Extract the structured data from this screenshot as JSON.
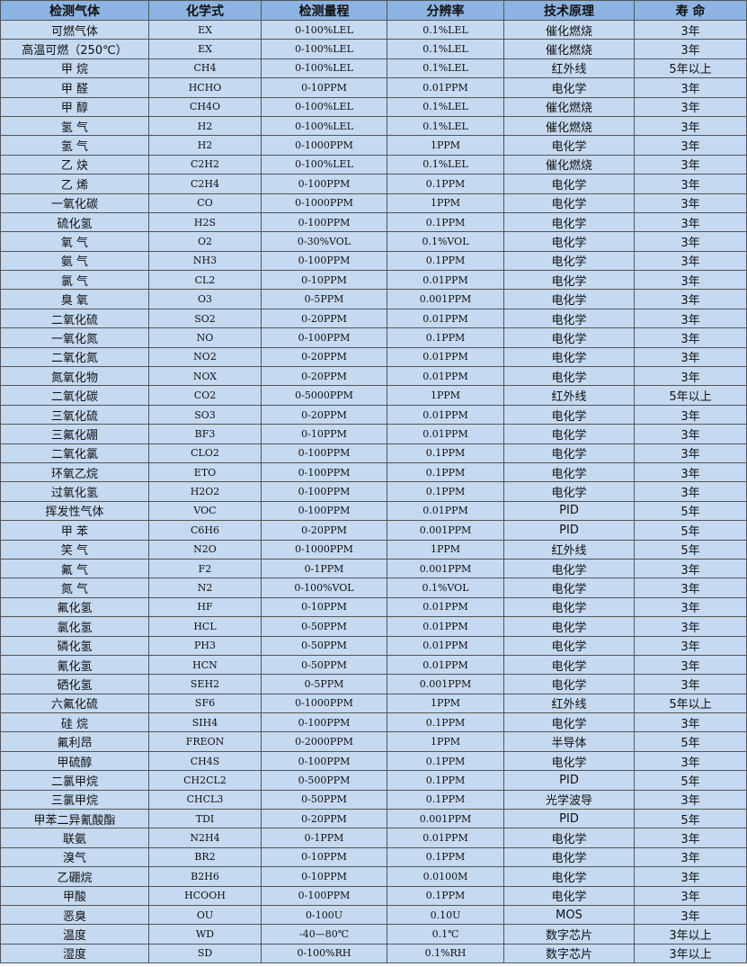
{
  "headers": [
    "检测气体",
    "化学式",
    "检测量程",
    "分辨率",
    "技术原理",
    "寿 命"
  ],
  "rows": [
    [
      "可燃气体",
      "EX",
      "0-100%LEL",
      "0.1%LEL",
      "催化燃烧",
      "3年"
    ],
    [
      "高温可燃（250℃）",
      "EX",
      "0-100%LEL",
      "0.1%LEL",
      "催化燃烧",
      "3年"
    ],
    [
      "甲 烷",
      "CH4",
      "0-100%LEL",
      "0.1%LEL",
      "红外线",
      "5年以上"
    ],
    [
      "甲 醛",
      "HCHO",
      "0-10PPM",
      "0.01PPM",
      "电化学",
      "3年"
    ],
    [
      "甲 醇",
      "CH4O",
      "0-100%LEL",
      "0.1%LEL",
      "催化燃烧",
      "3年"
    ],
    [
      "氢 气",
      "H2",
      "0-100%LEL",
      "0.1%LEL",
      "催化燃烧",
      "3年"
    ],
    [
      "氢 气",
      "H2",
      "0-1000PPM",
      "1PPM",
      "电化学",
      "3年"
    ],
    [
      "乙 炔",
      "C2H2",
      "0-100%LEL",
      "0.1%LEL",
      "催化燃烧",
      "3年"
    ],
    [
      "乙 烯",
      "C2H4",
      "0-100PPM",
      "0.1PPM",
      "电化学",
      "3年"
    ],
    [
      "一氧化碳",
      "CO",
      "0-1000PPM",
      "1PPM",
      "电化学",
      "3年"
    ],
    [
      "硫化氢",
      "H2S",
      "0-100PPM",
      "0.1PPM",
      "电化学",
      "3年"
    ],
    [
      "氧 气",
      "O2",
      "0-30%VOL",
      "0.1%VOL",
      "电化学",
      "3年"
    ],
    [
      "氨 气",
      "NH3",
      "0-100PPM",
      "0.1PPM",
      "电化学",
      "3年"
    ],
    [
      "氯 气",
      "CL2",
      "0-10PPM",
      "0.01PPM",
      "电化学",
      "3年"
    ],
    [
      "臭 氧",
      "O3",
      "0-5PPM",
      "0.001PPM",
      "电化学",
      "3年"
    ],
    [
      "二氧化硫",
      "SO2",
      "0-20PPM",
      "0.01PPM",
      "电化学",
      "3年"
    ],
    [
      "一氧化氮",
      "NO",
      "0-100PPM",
      "0.1PPM",
      "电化学",
      "3年"
    ],
    [
      "二氧化氮",
      "NO2",
      "0-20PPM",
      "0.01PPM",
      "电化学",
      "3年"
    ],
    [
      "氮氧化物",
      "NOX",
      "0-20PPM",
      "0.01PPM",
      "电化学",
      "3年"
    ],
    [
      "二氧化碳",
      "CO2",
      "0-5000PPM",
      "1PPM",
      "红外线",
      "5年以上"
    ],
    [
      "三氧化硫",
      "SO3",
      "0-20PPM",
      "0.01PPM",
      "电化学",
      "3年"
    ],
    [
      "三氟化硼",
      "BF3",
      "0-10PPM",
      "0.01PPM",
      "电化学",
      "3年"
    ],
    [
      "二氧化氯",
      "CLO2",
      "0-100PPM",
      "0.1PPM",
      "电化学",
      "3年"
    ],
    [
      "环氧乙烷",
      "ETO",
      "0-100PPM",
      "0.1PPM",
      "电化学",
      "3年"
    ],
    [
      "过氧化氢",
      "H2O2",
      "0-100PPM",
      "0.1PPM",
      "电化学",
      "3年"
    ],
    [
      "挥发性气体",
      "VOC",
      "0-100PPM",
      "0.01PPM",
      "PID",
      "5年"
    ],
    [
      "甲 苯",
      "C6H6",
      "0-20PPM",
      "0.001PPM",
      "PID",
      "5年"
    ],
    [
      "笑 气",
      "N2O",
      "0-1000PPM",
      "1PPM",
      "红外线",
      "5年"
    ],
    [
      "氟 气",
      "F2",
      "0-1PPM",
      "0.001PPM",
      "电化学",
      "3年"
    ],
    [
      "氮 气",
      "N2",
      "0-100%VOL",
      "0.1%VOL",
      "电化学",
      "3年"
    ],
    [
      "氟化氢",
      "HF",
      "0-10PPM",
      "0.01PPM",
      "电化学",
      "3年"
    ],
    [
      "氯化氢",
      "HCL",
      "0-50PPM",
      "0.01PPM",
      "电化学",
      "3年"
    ],
    [
      "磷化氢",
      "PH3",
      "0-50PPM",
      "0.01PPM",
      "电化学",
      "3年"
    ],
    [
      "氰化氢",
      "HCN",
      "0-50PPM",
      "0.01PPM",
      "电化学",
      "3年"
    ],
    [
      "硒化氢",
      "SEH2",
      "0-5PPM",
      "0.001PPM",
      "电化学",
      "3年"
    ],
    [
      "六氟化硫",
      "SF6",
      "0-1000PPM",
      "1PPM",
      "红外线",
      "5年以上"
    ],
    [
      "硅 烷",
      "SIH4",
      "0-100PPM",
      "0.1PPM",
      "电化学",
      "3年"
    ],
    [
      "氟利昂",
      "FREON",
      "0-2000PPM",
      "1PPM",
      "半导体",
      "5年"
    ],
    [
      "甲硫醇",
      "CH4S",
      "0-100PPM",
      "0.1PPM",
      "电化学",
      "3年"
    ],
    [
      "二氯甲烷",
      "CH2CL2",
      "0-500PPM",
      "0.1PPM",
      "PID",
      "5年"
    ],
    [
      "三氯甲烷",
      "CHCL3",
      "0-50PPM",
      "0.1PPM",
      "光学波导",
      "3年"
    ],
    [
      "甲苯二异氰酸酯",
      "TDI",
      "0-20PPM",
      "0.001PPM",
      "PID",
      "5年"
    ],
    [
      "联氨",
      "N2H4",
      "0-1PPM",
      "0.01PPM",
      "电化学",
      "3年"
    ],
    [
      "溴气",
      "BR2",
      "0-10PPM",
      "0.1PPM",
      "电化学",
      "3年"
    ],
    [
      "乙硼烷",
      "B2H6",
      "0-10PPM",
      "0.0100M",
      "电化学",
      "3年"
    ],
    [
      "甲酸",
      "HCOOH",
      "0-100PPM",
      "0.1PPM",
      "电化学",
      "3年"
    ],
    [
      "恶臭",
      "OU",
      "0-100U",
      "0.10U",
      "MOS",
      "3年"
    ],
    [
      "温度",
      "WD",
      "-40—80℃",
      "0.1℃",
      "数字芯片",
      "3年以上"
    ],
    [
      "湿度",
      "SD",
      "0-100%RH",
      "0.1%RH",
      "数字芯片",
      "3年以上"
    ]
  ],
  "colors": {
    "header_bg": "#8db4e2",
    "row_bg": "#c5d9f1",
    "border": "#555555"
  }
}
